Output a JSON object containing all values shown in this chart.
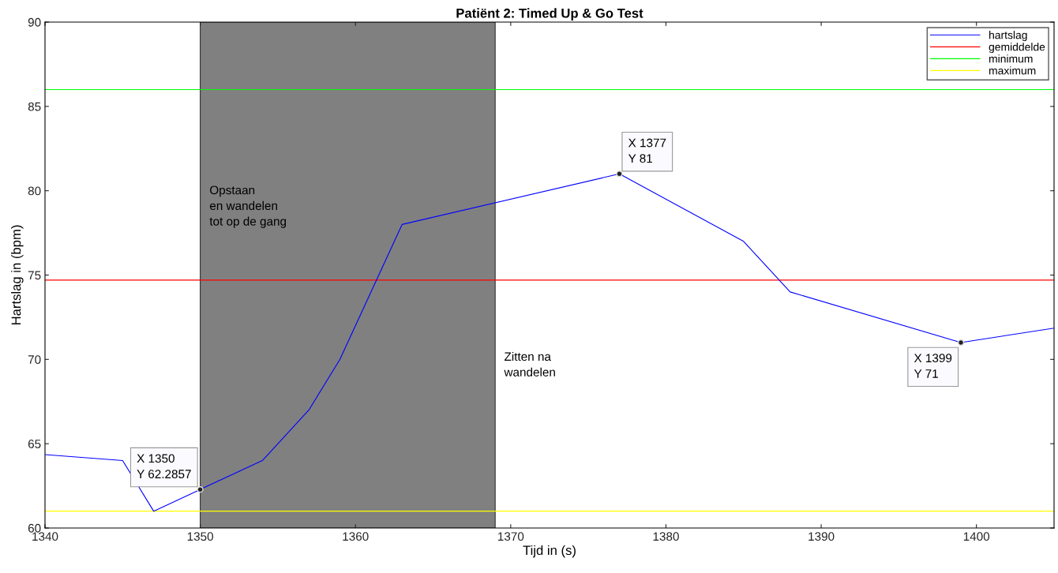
{
  "chart_data": {
    "type": "line",
    "title": "Patiënt 2: Timed Up & Go Test",
    "xlabel": "Tijd in (s)",
    "ylabel": "Hartslag in (bpm)",
    "series": [
      {
        "name": "hartslag",
        "color": "#0000ff",
        "x": [
          1340,
          1345,
          1347,
          1350,
          1354,
          1357,
          1359,
          1363,
          1377,
          1385,
          1388,
          1399,
          1405
        ],
        "values": [
          64.35,
          64.0,
          61.0,
          62.2857,
          64.0,
          67.0,
          70.0,
          78.0,
          81.0,
          77.0,
          74.0,
          71.0,
          71.85
        ]
      }
    ],
    "ref_lines": [
      {
        "axis": "y",
        "value": 74.7,
        "label": "gemiddelde",
        "color": "#ff0000"
      },
      {
        "axis": "y",
        "value": 86,
        "label": "minimum",
        "color": "#00ff00"
      },
      {
        "axis": "y",
        "value": 61,
        "label": "maximum",
        "color": "#ffff00"
      }
    ],
    "bands": [
      {
        "axis": "x",
        "from": 1350,
        "to": 1369,
        "color": "#808080"
      }
    ],
    "annotations": [
      "Opstaan\nen wandelen\ntot op de gang",
      "Zitten na\nwandelen",
      {
        "text": "X 1350\nY 62.2857",
        "x": 1350,
        "y": 62.2857
      },
      {
        "text": "X 1377\nY 81",
        "x": 1377,
        "y": 81
      },
      {
        "text": "X 1399\nY 71",
        "x": 1399,
        "y": 71
      }
    ],
    "xlim": [
      1340,
      1405
    ],
    "ylim": [
      60,
      90
    ],
    "xticks": [
      1340,
      1350,
      1360,
      1370,
      1380,
      1390,
      1400
    ],
    "yticks": [
      60,
      65,
      70,
      75,
      80,
      85,
      90
    ],
    "grid": false,
    "legend": "top right",
    "marker": "none",
    "line_style": "solid"
  }
}
